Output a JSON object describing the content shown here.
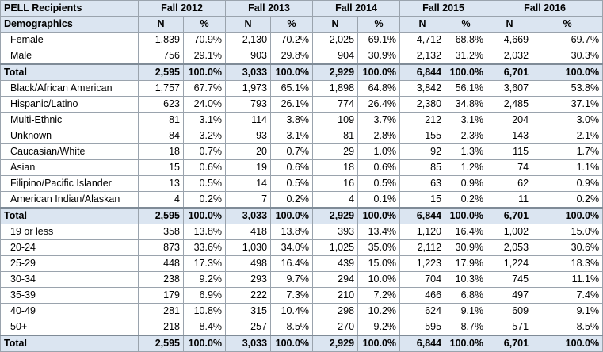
{
  "header": {
    "title": "PELL Recipients",
    "years": [
      "Fall 2012",
      "Fall 2013",
      "Fall 2014",
      "Fall 2015",
      "Fall 2016"
    ]
  },
  "subheader": {
    "label": "Demographics",
    "n": "N",
    "pct": "%"
  },
  "gender": [
    {
      "label": "Female",
      "vals": [
        "1,839",
        "70.9%",
        "2,130",
        "70.2%",
        "2,025",
        "69.1%",
        "4,712",
        "68.8%",
        "4,669",
        "69.7%"
      ]
    },
    {
      "label": "Male",
      "vals": [
        "756",
        "29.1%",
        "903",
        "29.8%",
        "904",
        "30.9%",
        "2,132",
        "31.2%",
        "2,032",
        "30.3%"
      ]
    }
  ],
  "total_gender": {
    "label": "Total",
    "vals": [
      "2,595",
      "100.0%",
      "3,033",
      "100.0%",
      "2,929",
      "100.0%",
      "6,844",
      "100.0%",
      "6,701",
      "100.0%"
    ]
  },
  "ethnicity": [
    {
      "label": "Black/African American",
      "vals": [
        "1,757",
        "67.7%",
        "1,973",
        "65.1%",
        "1,898",
        "64.8%",
        "3,842",
        "56.1%",
        "3,607",
        "53.8%"
      ]
    },
    {
      "label": "Hispanic/Latino",
      "vals": [
        "623",
        "24.0%",
        "793",
        "26.1%",
        "774",
        "26.4%",
        "2,380",
        "34.8%",
        "2,485",
        "37.1%"
      ]
    },
    {
      "label": "Multi-Ethnic",
      "vals": [
        "81",
        "3.1%",
        "114",
        "3.8%",
        "109",
        "3.7%",
        "212",
        "3.1%",
        "204",
        "3.0%"
      ]
    },
    {
      "label": "Unknown",
      "vals": [
        "84",
        "3.2%",
        "93",
        "3.1%",
        "81",
        "2.8%",
        "155",
        "2.3%",
        "143",
        "2.1%"
      ]
    },
    {
      "label": "Caucasian/White",
      "vals": [
        "18",
        "0.7%",
        "20",
        "0.7%",
        "29",
        "1.0%",
        "92",
        "1.3%",
        "115",
        "1.7%"
      ]
    },
    {
      "label": "Asian",
      "vals": [
        "15",
        "0.6%",
        "19",
        "0.6%",
        "18",
        "0.6%",
        "85",
        "1.2%",
        "74",
        "1.1%"
      ]
    },
    {
      "label": "Filipino/Pacific Islander",
      "vals": [
        "13",
        "0.5%",
        "14",
        "0.5%",
        "16",
        "0.5%",
        "63",
        "0.9%",
        "62",
        "0.9%"
      ]
    },
    {
      "label": "American Indian/Alaskan",
      "vals": [
        "4",
        "0.2%",
        "7",
        "0.2%",
        "4",
        "0.1%",
        "15",
        "0.2%",
        "11",
        "0.2%"
      ]
    }
  ],
  "total_ethnicity": {
    "label": "Total",
    "vals": [
      "2,595",
      "100.0%",
      "3,033",
      "100.0%",
      "2,929",
      "100.0%",
      "6,844",
      "100.0%",
      "6,701",
      "100.0%"
    ]
  },
  "age": [
    {
      "label": "19 or less",
      "vals": [
        "358",
        "13.8%",
        "418",
        "13.8%",
        "393",
        "13.4%",
        "1,120",
        "16.4%",
        "1,002",
        "15.0%"
      ]
    },
    {
      "label": "20-24",
      "vals": [
        "873",
        "33.6%",
        "1,030",
        "34.0%",
        "1,025",
        "35.0%",
        "2,112",
        "30.9%",
        "2,053",
        "30.6%"
      ]
    },
    {
      "label": "25-29",
      "vals": [
        "448",
        "17.3%",
        "498",
        "16.4%",
        "439",
        "15.0%",
        "1,223",
        "17.9%",
        "1,224",
        "18.3%"
      ]
    },
    {
      "label": "30-34",
      "vals": [
        "238",
        "9.2%",
        "293",
        "9.7%",
        "294",
        "10.0%",
        "704",
        "10.3%",
        "745",
        "11.1%"
      ]
    },
    {
      "label": "35-39",
      "vals": [
        "179",
        "6.9%",
        "222",
        "7.3%",
        "210",
        "7.2%",
        "466",
        "6.8%",
        "497",
        "7.4%"
      ]
    },
    {
      "label": "40-49",
      "vals": [
        "281",
        "10.8%",
        "315",
        "10.4%",
        "298",
        "10.2%",
        "624",
        "9.1%",
        "609",
        "9.1%"
      ]
    },
    {
      "label": "50+",
      "vals": [
        "218",
        "8.4%",
        "257",
        "8.5%",
        "270",
        "9.2%",
        "595",
        "8.7%",
        "571",
        "8.5%"
      ]
    }
  ],
  "total_age": {
    "label": "Total",
    "vals": [
      "2,595",
      "100.0%",
      "3,033",
      "100.0%",
      "2,929",
      "100.0%",
      "6,844",
      "100.0%",
      "6,701",
      "100.0%"
    ]
  }
}
